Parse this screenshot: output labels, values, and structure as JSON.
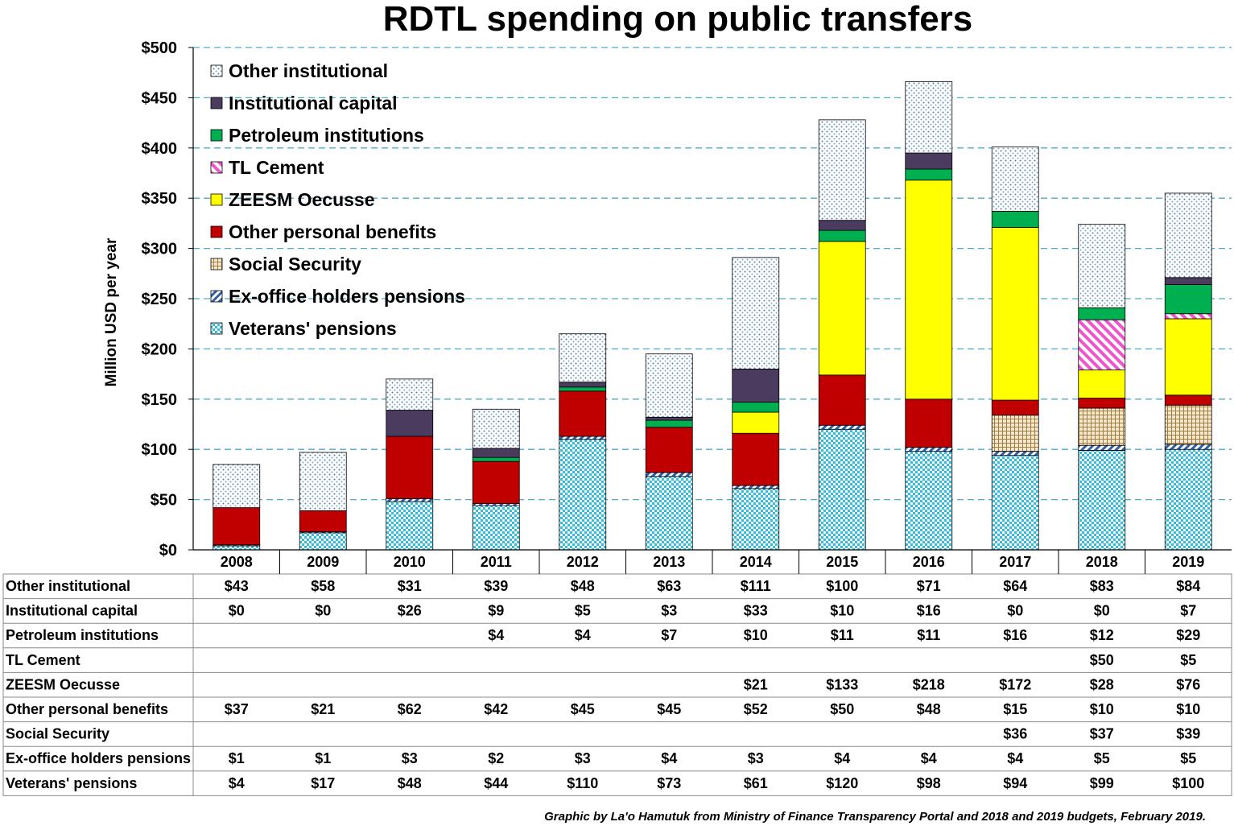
{
  "chart_data": {
    "type": "bar",
    "stacked": true,
    "title": "RDTL spending on public transfers",
    "ylabel": "Million USD per year",
    "ylim": [
      0,
      500
    ],
    "yticks": [
      "$0",
      "$50",
      "$100",
      "$150",
      "$200",
      "$250",
      "$300",
      "$350",
      "$400",
      "$450",
      "$500"
    ],
    "grid": true,
    "legend_position": "top-left",
    "categories": [
      "2008",
      "2009",
      "2010",
      "2011",
      "2012",
      "2013",
      "2014",
      "2015",
      "2016",
      "2017",
      "2018",
      "2019"
    ],
    "series": [
      {
        "name": "Veterans' pensions",
        "color": "#33BEDD",
        "pattern": "checker",
        "values": [
          4,
          17,
          48,
          44,
          110,
          73,
          61,
          120,
          98,
          94,
          99,
          100
        ],
        "labels": [
          "$4",
          "$17",
          "$48",
          "$44",
          "$110",
          "$73",
          "$61",
          "$120",
          "$98",
          "$94",
          "$99",
          "$100"
        ]
      },
      {
        "name": "Ex-office holders pensions",
        "color": "#2E5FA8",
        "pattern": "diagonal",
        "values": [
          1,
          1,
          3,
          2,
          3,
          4,
          3,
          4,
          4,
          4,
          5,
          5
        ],
        "labels": [
          "$1",
          "$1",
          "$3",
          "$2",
          "$3",
          "$4",
          "$3",
          "$4",
          "$4",
          "$4",
          "$5",
          "$5"
        ]
      },
      {
        "name": "Social Security",
        "color": "#C8A56A",
        "pattern": "grid",
        "values": [
          0,
          0,
          0,
          0,
          0,
          0,
          0,
          0,
          0,
          36,
          37,
          39
        ],
        "labels": [
          "",
          "",
          "",
          "",
          "",
          "",
          "",
          "",
          "",
          "$36",
          "$37",
          "$39"
        ]
      },
      {
        "name": "Other personal benefits",
        "color": "#C00000",
        "pattern": "solid",
        "values": [
          37,
          21,
          62,
          42,
          45,
          45,
          52,
          50,
          48,
          15,
          10,
          10
        ],
        "labels": [
          "$37",
          "$21",
          "$62",
          "$42",
          "$45",
          "$45",
          "$52",
          "$50",
          "$48",
          "$15",
          "$10",
          "$10"
        ]
      },
      {
        "name": "ZEESM Oecusse",
        "color": "#FFFF00",
        "pattern": "solid",
        "values": [
          0,
          0,
          0,
          0,
          0,
          0,
          21,
          133,
          218,
          172,
          28,
          76
        ],
        "labels": [
          "",
          "",
          "",
          "",
          "",
          "",
          "$21",
          "$133",
          "$218",
          "$172",
          "$28",
          "$76"
        ]
      },
      {
        "name": "TL Cement",
        "color": "#EE55CC",
        "pattern": "diagonal-pink",
        "values": [
          0,
          0,
          0,
          0,
          0,
          0,
          0,
          0,
          0,
          0,
          50,
          5
        ],
        "labels": [
          "",
          "",
          "",
          "",
          "",
          "",
          "",
          "",
          "",
          "",
          "$50",
          "$5"
        ]
      },
      {
        "name": "Petroleum institutions",
        "color": "#00B050",
        "pattern": "solid",
        "values": [
          0,
          0,
          0,
          4,
          4,
          7,
          10,
          11,
          11,
          16,
          12,
          29
        ],
        "labels": [
          "",
          "",
          "",
          "$4",
          "$4",
          "$7",
          "$10",
          "$11",
          "$11",
          "$16",
          "$12",
          "$29"
        ]
      },
      {
        "name": "Institutional capital",
        "color": "#4B3B5E",
        "pattern": "solid",
        "values": [
          0,
          0,
          26,
          9,
          5,
          3,
          33,
          10,
          16,
          0,
          0,
          7
        ],
        "labels": [
          "$0",
          "$0",
          "$26",
          "$9",
          "$5",
          "$3",
          "$33",
          "$10",
          "$16",
          "$0",
          "$0",
          "$7"
        ]
      },
      {
        "name": "Other institutional",
        "color": "#B7CCE0",
        "pattern": "dots",
        "values": [
          43,
          58,
          31,
          39,
          48,
          63,
          111,
          100,
          71,
          64,
          83,
          84
        ],
        "labels": [
          "$43",
          "$58",
          "$31",
          "$39",
          "$48",
          "$63",
          "$111",
          "$100",
          "$71",
          "$64",
          "$83",
          "$84"
        ]
      }
    ],
    "legend_order": [
      "Other institutional",
      "Institutional capital",
      "Petroleum institutions",
      "TL Cement",
      "ZEESM Oecusse",
      "Other personal benefits",
      "Social Security",
      "Ex-office holders pensions",
      "Veterans' pensions"
    ],
    "credit": "Graphic by La'o Hamutuk from Ministry of Finance Transparency Portal and 2018 and 2019 budgets, February 2019."
  }
}
